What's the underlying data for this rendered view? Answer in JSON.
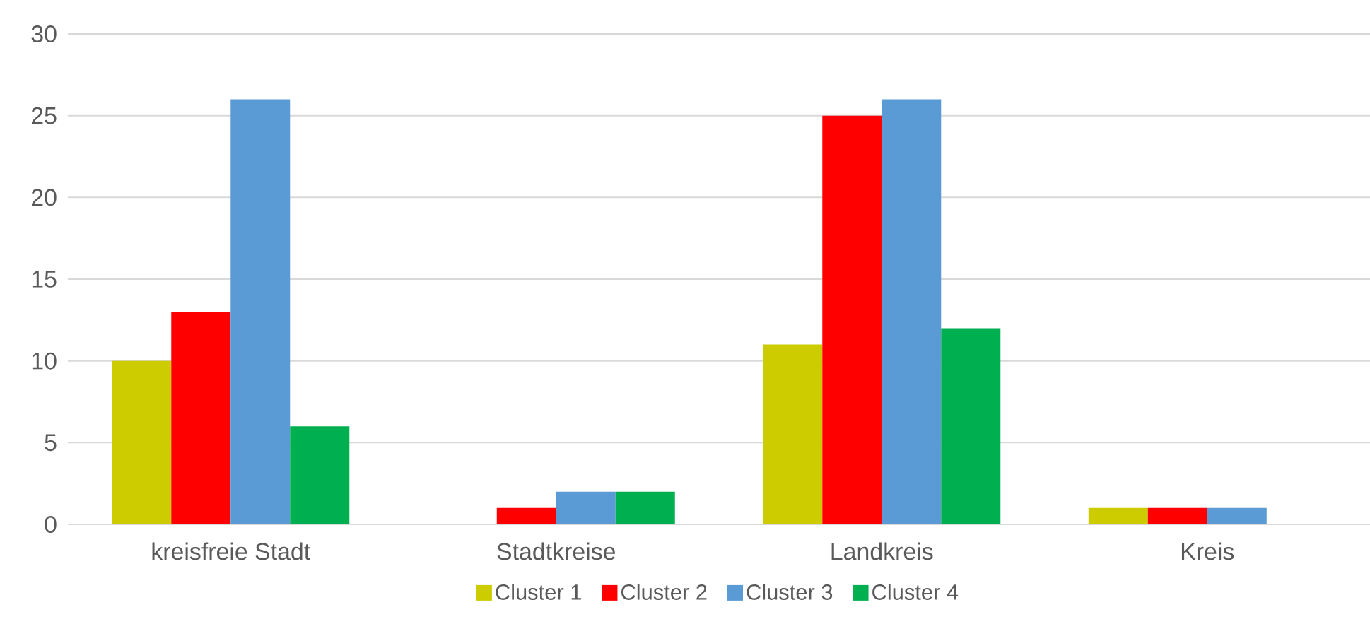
{
  "chart_data": {
    "type": "bar",
    "categories": [
      "kreisfreie Stadt",
      "Stadtkreise",
      "Landkreis",
      "Kreis"
    ],
    "series": [
      {
        "name": "Cluster 1",
        "color": "#cccc00",
        "values": [
          10,
          0,
          11,
          1
        ]
      },
      {
        "name": "Cluster 2",
        "color": "#ff0000",
        "values": [
          13,
          1,
          25,
          1
        ]
      },
      {
        "name": "Cluster 3",
        "color": "#5b9bd5",
        "values": [
          26,
          2,
          26,
          1
        ]
      },
      {
        "name": "Cluster 4",
        "color": "#00b050",
        "values": [
          6,
          2,
          12,
          0
        ]
      }
    ],
    "ylim": [
      0,
      30
    ],
    "yticks": [
      0,
      5,
      10,
      15,
      20,
      25,
      30
    ],
    "grid": "y",
    "legend": "bottom"
  }
}
